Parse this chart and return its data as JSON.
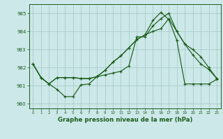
{
  "background_color": "#cce8e8",
  "grid_color": "#aacccc",
  "line_color": "#1a5c1a",
  "title": "Graphe pression niveau de la mer (hPa)",
  "xlim": [
    -0.5,
    23.5
  ],
  "ylim": [
    979.75,
    985.5
  ],
  "yticks": [
    980,
    981,
    982,
    983,
    984,
    985
  ],
  "xticks": [
    0,
    1,
    2,
    3,
    4,
    5,
    6,
    7,
    8,
    9,
    10,
    11,
    12,
    13,
    14,
    15,
    16,
    17,
    18,
    19,
    20,
    21,
    22,
    23
  ],
  "line1_x": [
    0,
    1,
    2,
    3,
    4,
    5,
    6,
    7,
    8,
    9,
    10,
    11,
    12,
    13,
    14,
    15,
    16,
    17,
    18,
    19,
    20,
    21,
    22,
    23
  ],
  "line1_y": [
    982.2,
    981.45,
    981.1,
    980.8,
    980.4,
    980.4,
    981.05,
    981.1,
    981.5,
    981.6,
    981.7,
    981.8,
    982.1,
    983.7,
    983.7,
    984.3,
    984.7,
    985.0,
    984.0,
    983.3,
    982.7,
    982.2,
    981.9,
    981.4
  ],
  "line2_x": [
    0,
    1,
    2,
    3,
    4,
    5,
    6,
    7,
    8,
    9,
    10,
    11,
    12,
    13,
    14,
    15,
    16,
    17,
    18,
    19,
    20,
    21,
    22,
    23
  ],
  "line2_y": [
    982.2,
    981.45,
    981.1,
    981.45,
    981.45,
    981.45,
    981.4,
    981.4,
    981.5,
    981.85,
    982.3,
    982.65,
    983.1,
    983.55,
    983.8,
    984.0,
    984.15,
    984.7,
    984.0,
    983.3,
    983.0,
    982.6,
    982.0,
    981.4
  ],
  "line3_x": [
    0,
    1,
    2,
    3,
    4,
    5,
    6,
    7,
    8,
    9,
    10,
    11,
    12,
    13,
    14,
    15,
    16,
    17,
    18,
    19,
    20,
    21,
    22,
    23
  ],
  "line3_y": [
    982.2,
    981.45,
    981.1,
    981.45,
    981.45,
    981.45,
    981.4,
    981.4,
    981.5,
    981.85,
    982.3,
    982.65,
    983.1,
    983.55,
    983.8,
    984.6,
    985.05,
    984.65,
    983.5,
    981.1,
    981.1,
    981.1,
    981.1,
    981.35
  ]
}
